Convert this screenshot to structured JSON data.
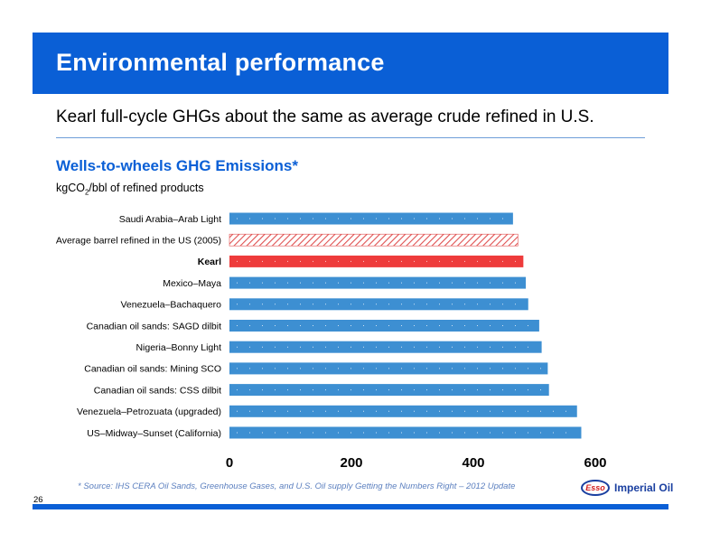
{
  "banner": {
    "title": "Environmental performance"
  },
  "subtitle": "Kearl full-cycle GHGs about the same as average crude refined in U.S.",
  "chart_heading": "Wells-to-wheels GHG Emissions*",
  "unit": {
    "pre": "kgCO",
    "sub": "2",
    "post": "/bbl of refined products"
  },
  "source": "* Source: IHS CERA Oil Sands, Greenhouse Gases, and U.S. Oil supply Getting the Numbers Right – 2012 Update",
  "page_number": "26",
  "logo": {
    "badge": "Esso",
    "name": "Imperial Oil"
  },
  "colors": {
    "brand_blue": "#0a5fd6",
    "bar_blue": "#3d8fd2",
    "kearl_red": "#ee3b3b",
    "hatch_red": "#e05050"
  },
  "chart_data": {
    "type": "bar",
    "orientation": "horizontal",
    "categories": [
      "Saudi Arabia–Arab Light",
      "Average barrel refined in the US (2005)",
      "Kearl",
      "Mexico–Maya",
      "Venezuela–Bachaquero",
      "Canadian oil sands: SAGD dilbit",
      "Nigeria–Bonny Light",
      "Canadian oil sands: Mining SCO",
      "Canadian oil sands: CSS dilbit",
      "Venezuela–Petrozuata (upgraded)",
      "US–Midway–Sunset (California)"
    ],
    "values": [
      465,
      473,
      482,
      486,
      490,
      508,
      512,
      522,
      524,
      570,
      577
    ],
    "styles": [
      "solid",
      "hatched",
      "highlight",
      "solid",
      "solid",
      "solid",
      "solid",
      "solid",
      "solid",
      "solid",
      "solid"
    ],
    "xlim": [
      0,
      600
    ],
    "xticks": [
      "0",
      "200",
      "400",
      "600"
    ],
    "xtick_values": [
      0,
      200,
      400,
      600
    ],
    "grid": false,
    "legend": "none"
  }
}
